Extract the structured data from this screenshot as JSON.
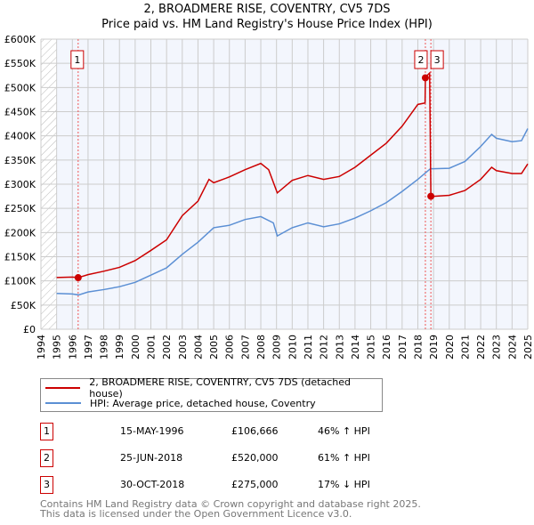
{
  "chart_data": {
    "type": "line",
    "title": "2, BROADMERE RISE, COVENTRY, CV5 7DS",
    "subtitle": "Price paid vs. HM Land Registry's House Price Index (HPI)",
    "ylim": [
      0,
      600000
    ],
    "xlim": [
      1994,
      2025
    ],
    "y_ticks": [
      "£0",
      "£50K",
      "£100K",
      "£150K",
      "£200K",
      "£250K",
      "£300K",
      "£350K",
      "£400K",
      "£450K",
      "£500K",
      "£550K",
      "£600K"
    ],
    "x_ticks": [
      "1994",
      "1995",
      "1996",
      "1997",
      "1998",
      "1999",
      "2000",
      "2001",
      "2002",
      "2003",
      "2004",
      "2005",
      "2006",
      "2007",
      "2008",
      "2009",
      "2010",
      "2011",
      "2012",
      "2013",
      "2014",
      "2015",
      "2016",
      "2017",
      "2018",
      "2019",
      "2020",
      "2021",
      "2022",
      "2023",
      "2024",
      "2025"
    ],
    "grid": true,
    "series": [
      {
        "name": "2, BROADMERE RISE, COVENTRY, CV5 7DS (detached house)",
        "color": "#cc0000",
        "x": [
          1995,
          1996,
          1996.37,
          1997,
          1998,
          1999,
          2000,
          2001,
          2002,
          2003,
          2004,
          2004.7,
          2005,
          2006,
          2007,
          2008,
          2008.5,
          2009.05,
          2010,
          2011,
          2012,
          2013,
          2014,
          2015,
          2016,
          2017,
          2018,
          2018.46,
          2018.48,
          2018.6,
          2018.75,
          2018.83,
          2019,
          2020,
          2021,
          2022,
          2022.7,
          2023,
          2024,
          2024.6,
          2025
        ],
        "y": [
          107000,
          108000,
          106666,
          113000,
          120000,
          128000,
          142000,
          163000,
          185000,
          235000,
          265000,
          310000,
          303000,
          315000,
          330000,
          343000,
          330000,
          282000,
          308000,
          318000,
          310000,
          316000,
          335000,
          360000,
          385000,
          420000,
          465000,
          468000,
          520000,
          525000,
          530000,
          275000,
          275000,
          277000,
          287000,
          310000,
          335000,
          328000,
          322000,
          322000,
          342000
        ]
      },
      {
        "name": "HPI: Average price, detached house, Coventry",
        "color": "#5b8fd4",
        "x": [
          1995,
          1996,
          1996.4,
          1997,
          1998,
          1999,
          2000,
          2001,
          2002,
          2003,
          2004,
          2005,
          2006,
          2007,
          2008,
          2008.8,
          2009.05,
          2010,
          2011,
          2012,
          2013,
          2014,
          2015,
          2016,
          2017,
          2018,
          2018.8,
          2019,
          2020,
          2021,
          2022,
          2022.7,
          2023,
          2024,
          2024.6,
          2025
        ],
        "y": [
          74000,
          73000,
          71000,
          77000,
          82000,
          88000,
          97000,
          112000,
          127000,
          155000,
          180000,
          210000,
          215000,
          227000,
          233000,
          220000,
          193000,
          210000,
          220000,
          212000,
          218000,
          230000,
          245000,
          262000,
          285000,
          310000,
          332000,
          332000,
          333000,
          347000,
          378000,
          403000,
          395000,
          388000,
          390000,
          415000
        ]
      }
    ],
    "annotations": [
      {
        "label": "1",
        "x": 1996.37,
        "y": 106666
      },
      {
        "label": "2",
        "x": 2018.48,
        "y": 520000
      },
      {
        "label": "3",
        "x": 2018.83,
        "y": 275000
      }
    ],
    "legend_placement": "below"
  },
  "legend": {
    "items": [
      "2, BROADMERE RISE, COVENTRY, CV5 7DS (detached house)",
      "HPI: Average price, detached house, Coventry"
    ]
  },
  "sales": [
    {
      "num": "1",
      "date": "15-MAY-1996",
      "price": "£106,666",
      "hpi": "46% ↑ HPI"
    },
    {
      "num": "2",
      "date": "25-JUN-2018",
      "price": "£520,000",
      "hpi": "61% ↑ HPI"
    },
    {
      "num": "3",
      "date": "30-OCT-2018",
      "price": "£275,000",
      "hpi": "17% ↓ HPI"
    }
  ],
  "footer": {
    "line1": "Contains HM Land Registry data © Crown copyright and database right 2025.",
    "line2": "This data is licensed under the Open Government Licence v3.0."
  }
}
